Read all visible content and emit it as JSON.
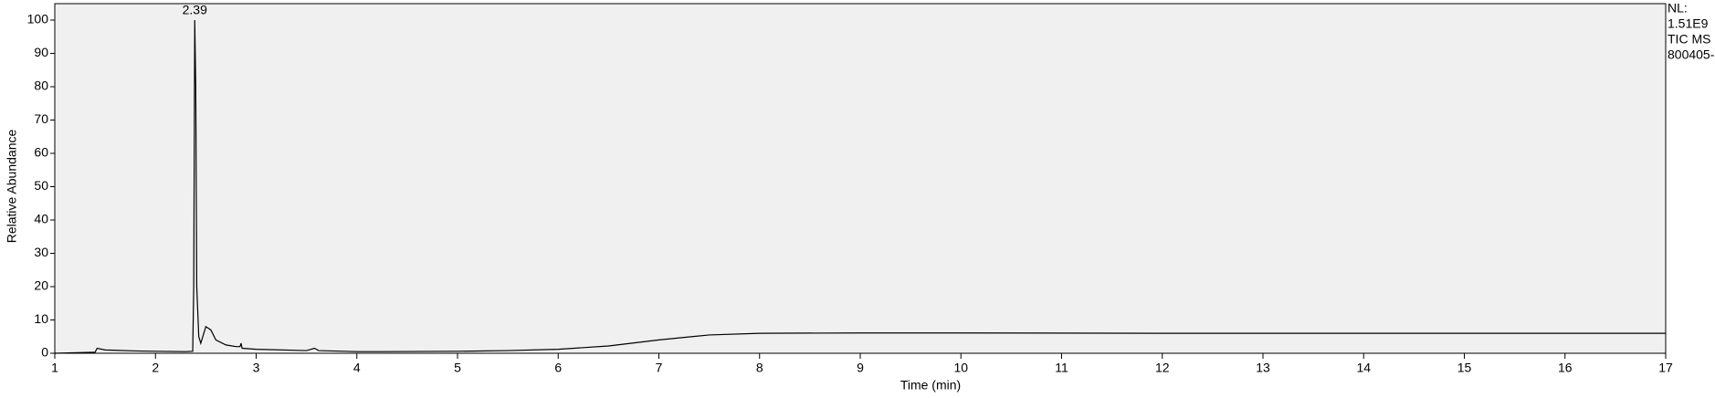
{
  "chart_data": {
    "type": "line",
    "x_label": "Time (min)",
    "y_label": "Relative Abundance",
    "info_labels": [
      "NL:",
      "1.51E9",
      "TIC  MS",
      "800405-"
    ],
    "peak_labels": [
      {
        "label": "2.39",
        "x": 2.39,
        "y": 100
      }
    ],
    "xlim": [
      1,
      17
    ],
    "ylim": [
      0,
      100
    ],
    "xticks": [
      1,
      2,
      3,
      4,
      5,
      6,
      7,
      8,
      9,
      10,
      11,
      12,
      13,
      14,
      15,
      16,
      17
    ],
    "yticks": [
      0,
      10,
      20,
      30,
      40,
      50,
      60,
      70,
      80,
      90,
      100
    ],
    "background": "#f0f0f0",
    "series": [
      {
        "color": "#000000",
        "x": [
          1.0,
          1.4,
          1.42,
          1.5,
          1.8,
          2.0,
          2.3,
          2.37,
          2.38,
          2.39,
          2.4,
          2.41,
          2.43,
          2.45,
          2.5,
          2.55,
          2.6,
          2.7,
          2.8,
          2.84,
          2.85,
          2.86,
          3.0,
          3.5,
          3.58,
          3.62,
          4.0,
          4.25,
          5.0,
          5.5,
          6.0,
          6.5,
          7.0,
          7.5,
          8.0,
          9.0,
          10.0,
          12.0,
          14.0,
          17.0
        ],
        "values": [
          0,
          0.3,
          1.5,
          1,
          0.7,
          0.6,
          0.5,
          0.6,
          20,
          100,
          80,
          20,
          5,
          3,
          8,
          7,
          4,
          2.5,
          2,
          2,
          3,
          1.5,
          1.2,
          0.8,
          1.5,
          0.8,
          0.5,
          0.5,
          0.6,
          0.8,
          1.2,
          2.2,
          4,
          5.5,
          6,
          6.1,
          6.1,
          6,
          6,
          6
        ]
      }
    ]
  }
}
